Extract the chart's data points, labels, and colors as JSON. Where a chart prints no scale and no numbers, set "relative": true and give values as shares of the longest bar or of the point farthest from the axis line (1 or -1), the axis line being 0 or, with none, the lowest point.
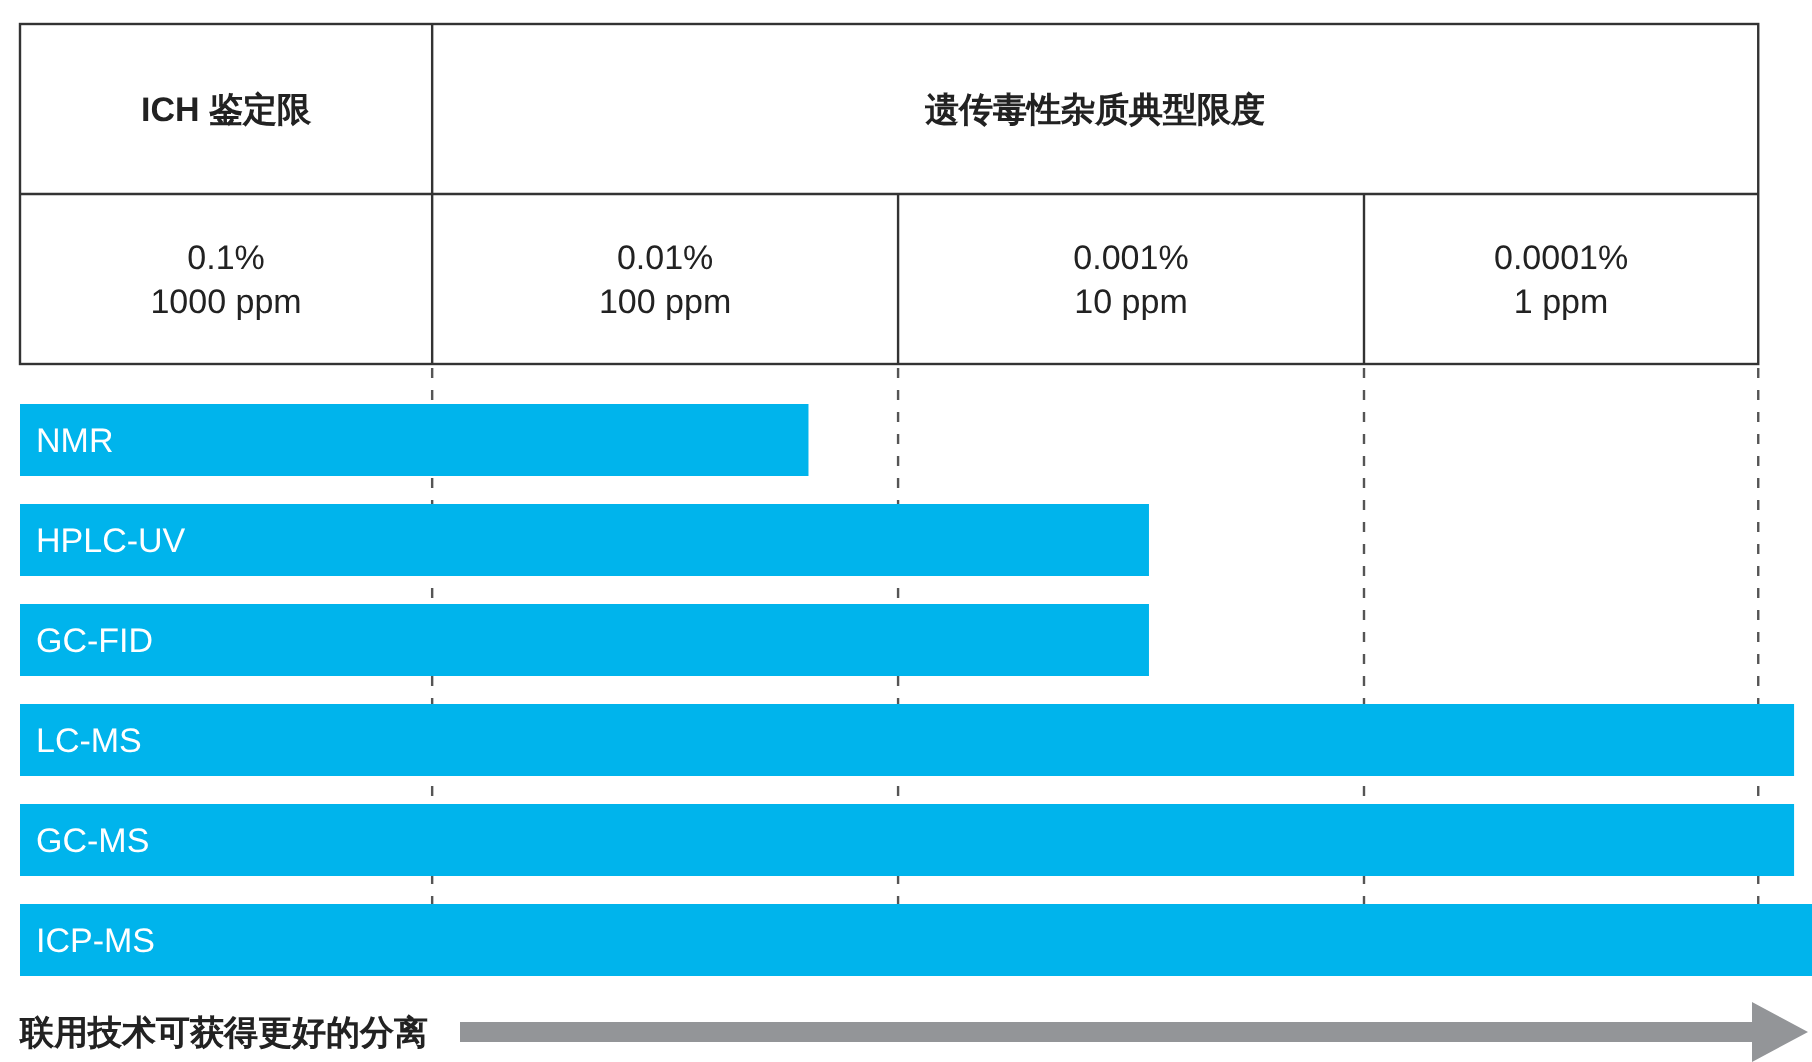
{
  "chart_data": {
    "type": "bar",
    "orientation": "horizontal",
    "relative": true,
    "categories": [
      "NMR",
      "HPLC-UV",
      "GC-FID",
      "LC-MS",
      "GC-MS",
      "ICP-MS"
    ],
    "values": [
      0.44,
      0.63,
      0.63,
      0.99,
      0.99,
      1
    ],
    "color": "#00b4ec",
    "ref_lines": [
      {
        "axis": "x",
        "value": 0.23,
        "line_style": "dashed",
        "color": "#555555"
      },
      {
        "axis": "x",
        "value": 0.49,
        "line_style": "dashed",
        "color": "#555555"
      },
      {
        "axis": "x",
        "value": 0.75,
        "line_style": "dashed",
        "color": "#555555"
      },
      {
        "axis": "x",
        "value": 0.97,
        "line_style": "dashed",
        "color": "#555555"
      }
    ],
    "annotations": [
      "ICH 鉴定限",
      "遗传毒性杂质典型限度",
      "0.1%\n1000 ppm",
      "0.01%\n100 ppm",
      "0.001%\n10 ppm",
      "0.0001%\n1 ppm"
    ],
    "xlabel": "联用技术可获得更好的分离"
  }
}
